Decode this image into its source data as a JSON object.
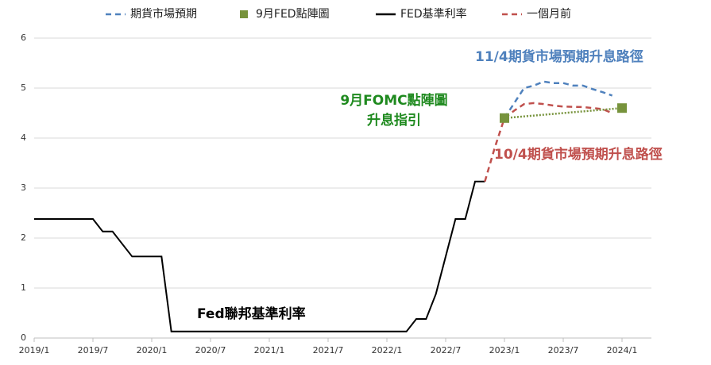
{
  "chart_data": {
    "type": "line",
    "xlim": [
      "2019/1",
      "2024/4"
    ],
    "xticks": [
      "2019/1",
      "2019/7",
      "2020/1",
      "2020/7",
      "2021/1",
      "2021/7",
      "2022/1",
      "2022/7",
      "2023/1",
      "2023/7",
      "2024/1"
    ],
    "ylim": [
      0,
      6
    ],
    "yticks": [
      0,
      1,
      2,
      3,
      4,
      5,
      6
    ],
    "grid": true,
    "legend": "top",
    "series": [
      {
        "name": "期貨市場預期",
        "color": "#4f81bd",
        "style": "dashed",
        "x": [
          "2023/1",
          "2023/2",
          "2023/3",
          "2023/4",
          "2023/5",
          "2023/6",
          "2023/7",
          "2023/8",
          "2023/9",
          "2023/10",
          "2023/11",
          "2023/12"
        ],
        "values": [
          4.4,
          4.7,
          5.0,
          5.05,
          5.13,
          5.1,
          5.1,
          5.05,
          5.05,
          4.98,
          4.92,
          4.85
        ]
      },
      {
        "name": "9月FED點陣圖",
        "color": "#77933c",
        "style": "dotted",
        "marker": "square",
        "x": [
          "2023/1",
          "2024/1"
        ],
        "values": [
          4.4,
          4.6
        ]
      },
      {
        "name": "FED基準利率",
        "color": "#000000",
        "style": "solid",
        "x": [
          "2019/1",
          "2019/7",
          "2019/8",
          "2019/9",
          "2019/10",
          "2019/11",
          "2020/2",
          "2020/3",
          "2022/3",
          "2022/4",
          "2022/5",
          "2022/6",
          "2022/7",
          "2022/8",
          "2022/9",
          "2022/10",
          "2022/11"
        ],
        "values": [
          2.38,
          2.38,
          2.13,
          2.13,
          1.88,
          1.63,
          1.63,
          0.13,
          0.13,
          0.38,
          0.38,
          0.88,
          1.63,
          2.38,
          2.38,
          3.13,
          3.13
        ]
      },
      {
        "name": "一個月前",
        "color": "#c0504d",
        "style": "dashed",
        "x": [
          "2022/11",
          "2022/12",
          "2023/1",
          "2023/2",
          "2023/3",
          "2023/4",
          "2023/5",
          "2023/6",
          "2023/7",
          "2023/9",
          "2023/11",
          "2023/12"
        ],
        "values": [
          3.13,
          3.8,
          4.4,
          4.55,
          4.68,
          4.7,
          4.68,
          4.65,
          4.63,
          4.62,
          4.58,
          4.5
        ]
      }
    ],
    "annotations": [
      {
        "text": "11/4期貨市場預期升息路徑",
        "color": "#4f81bd"
      },
      {
        "text": [
          "9月FOMC點陣圖",
          "升息指引"
        ],
        "color": "#1f8a1f"
      },
      {
        "text": "10/4期貨市場預期升息路徑",
        "color": "#c0504d"
      },
      {
        "text": "Fed聯邦基準利率",
        "color": "#000000"
      }
    ]
  }
}
